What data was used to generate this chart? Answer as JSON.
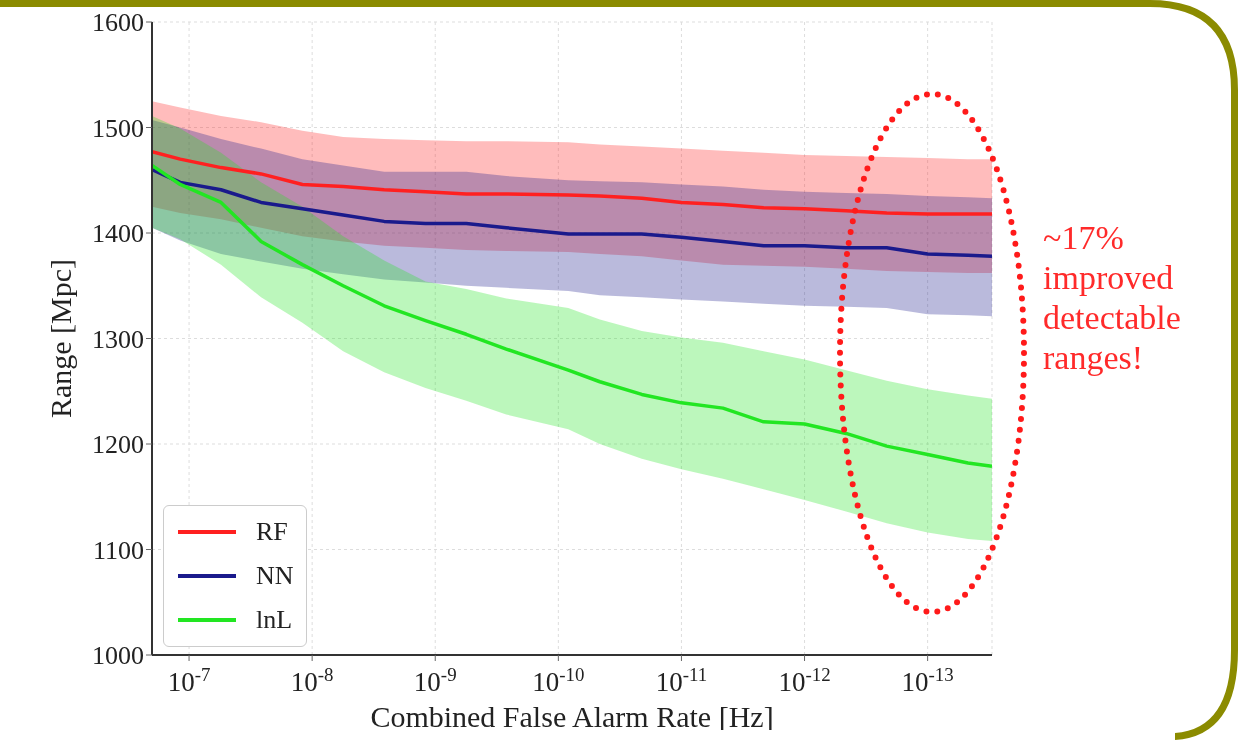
{
  "chart_data": {
    "type": "line",
    "xlabel": "Combined False Alarm Rate [Hz]",
    "ylabel": "Range [Mpc]",
    "x": [
      2e-07,
      1.18e-07,
      5.5e-08,
      2.6e-08,
      1.2e-08,
      5.6e-09,
      2.6e-09,
      1.2e-09,
      5.6e-10,
      2.65e-10,
      8.3e-11,
      4.6e-11,
      2.1e-11,
      1e-11,
      4.6e-12,
      2.15e-12,
      1e-12,
      4.6e-13,
      2.15e-13,
      1e-13,
      4.7e-14,
      3e-14
    ],
    "series": [
      {
        "name": "RF",
        "color": "#ff2020",
        "values": [
          1477,
          1470,
          1462,
          1456,
          1446,
          1444,
          1441,
          1439,
          1437,
          1437,
          1436,
          1435,
          1433,
          1429,
          1427,
          1424,
          1423,
          1421,
          1419,
          1418,
          1418,
          1418
        ],
        "lower": [
          1425,
          1419,
          1413,
          1405,
          1397,
          1392,
          1388,
          1386,
          1384,
          1383,
          1382,
          1380,
          1378,
          1374,
          1370,
          1369,
          1368,
          1366,
          1364,
          1363,
          1362,
          1362
        ],
        "upper": [
          1525,
          1519,
          1511,
          1505,
          1497,
          1491,
          1489,
          1488,
          1487,
          1487,
          1486,
          1484,
          1482,
          1480,
          1478,
          1476,
          1474,
          1473,
          1472,
          1471,
          1470,
          1470
        ]
      },
      {
        "name": "NN",
        "color": "#1a1a8c",
        "values": [
          1460,
          1448,
          1441,
          1429,
          1423,
          1417,
          1411,
          1409,
          1409,
          1405,
          1399,
          1399,
          1399,
          1396,
          1392,
          1388,
          1388,
          1386,
          1386,
          1380,
          1379,
          1378
        ],
        "lower": [
          1405,
          1393,
          1380,
          1373,
          1366,
          1361,
          1356,
          1353,
          1350,
          1348,
          1345,
          1341,
          1339,
          1337,
          1335,
          1333,
          1331,
          1330,
          1329,
          1323,
          1322,
          1321
        ],
        "upper": [
          1507,
          1500,
          1489,
          1480,
          1470,
          1464,
          1458,
          1458,
          1458,
          1454,
          1450,
          1449,
          1448,
          1446,
          1444,
          1441,
          1439,
          1438,
          1437,
          1435,
          1434,
          1433
        ]
      },
      {
        "name": "lnL",
        "color": "#22e622",
        "values": [
          1464,
          1446,
          1429,
          1392,
          1370,
          1350,
          1331,
          1317,
          1304,
          1290,
          1270,
          1259,
          1247,
          1239,
          1234,
          1221,
          1219,
          1210,
          1198,
          1190,
          1182,
          1179
        ],
        "lower": [
          1405,
          1394,
          1370,
          1339,
          1315,
          1288,
          1268,
          1253,
          1241,
          1228,
          1214,
          1200,
          1186,
          1176,
          1167,
          1157,
          1147,
          1136,
          1125,
          1116,
          1110,
          1108
        ],
        "upper": [
          1511,
          1499,
          1476,
          1448,
          1425,
          1397,
          1374,
          1354,
          1347,
          1338,
          1329,
          1318,
          1307,
          1301,
          1296,
          1288,
          1280,
          1270,
          1260,
          1252,
          1246,
          1243
        ]
      }
    ],
    "xlim": [
      2e-07,
      3e-14
    ],
    "xticks": [
      {
        "value": 1e-07,
        "label": "10$^{-7}$"
      },
      {
        "value": 1e-08,
        "label": "10$^{-8}$"
      },
      {
        "value": 1e-09,
        "label": "10$^{-9}$"
      },
      {
        "value": 1e-10,
        "label": "10$^{-10}$"
      },
      {
        "value": 1e-11,
        "label": "10$^{-11}$"
      },
      {
        "value": 1e-12,
        "label": "10$^{-12}$"
      },
      {
        "value": 1e-13,
        "label": "10$^{-13}$"
      }
    ],
    "ylim": [
      1000,
      1600
    ],
    "yticks": [
      1000,
      1100,
      1200,
      1300,
      1400,
      1500,
      1600
    ],
    "log": "x",
    "grid": true,
    "legend": "bottom left",
    "marker": "none",
    "line_style": "solid",
    "annotations": [
      "~17% improved detectable ranges!"
    ]
  }
}
